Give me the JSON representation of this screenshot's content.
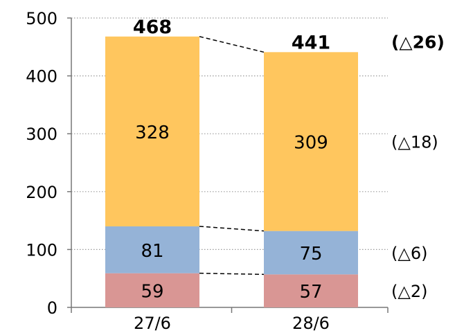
{
  "chart_data": {
    "type": "bar",
    "stacked": true,
    "categories": [
      "27/6",
      "28/6"
    ],
    "series": [
      {
        "values": [
          59,
          57
        ],
        "color": "#d99694"
      },
      {
        "values": [
          81,
          75
        ],
        "color": "#95b3d7"
      },
      {
        "values": [
          328,
          309
        ],
        "color": "#ffc65e"
      }
    ],
    "totals": [
      468,
      441
    ],
    "ylim": [
      0,
      500
    ],
    "yticks": [
      0,
      100,
      200,
      300,
      400,
      500
    ],
    "grid": true,
    "grid_style": "dotted",
    "connector_lines": "dashed",
    "annotations": [
      {
        "text": "(△26)",
        "series": "total",
        "bold": true
      },
      {
        "text": "(△18)",
        "series": 2
      },
      {
        "text": "(△6)",
        "series": 1
      },
      {
        "text": "(△2)",
        "series": 0
      }
    ],
    "title": "",
    "xlabel": "",
    "ylabel": ""
  }
}
